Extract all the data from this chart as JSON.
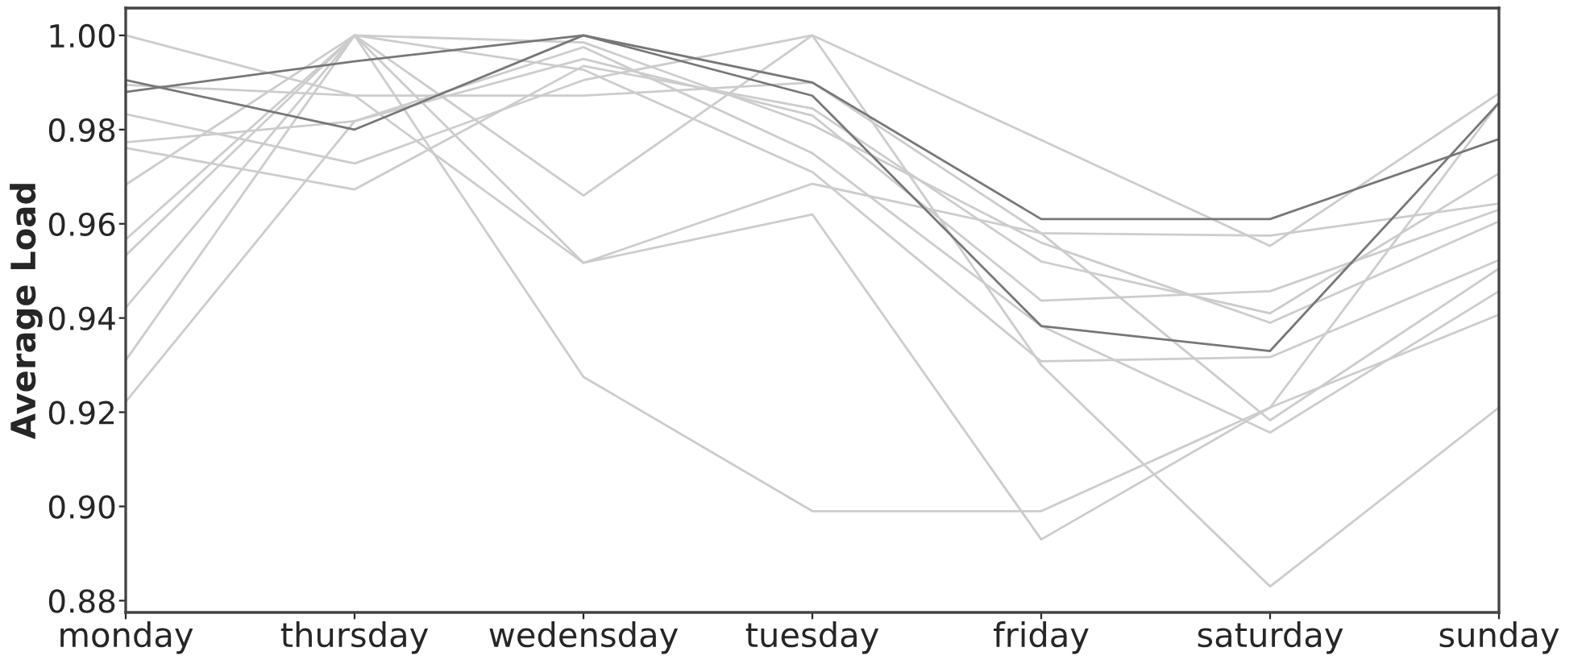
{
  "chart_data": {
    "type": "line",
    "ylabel": "Average Load",
    "categories": [
      "monday",
      "thursday",
      "wedensday",
      "tuesday",
      "friday",
      "saturday",
      "sunday"
    ],
    "ylim": [
      0.8775,
      1.0058
    ],
    "yticks": [
      {
        "value": 0.88,
        "label": "0.88"
      },
      {
        "value": 0.9,
        "label": "0.90"
      },
      {
        "value": 0.92,
        "label": "0.92"
      },
      {
        "value": 0.94,
        "label": "0.94"
      },
      {
        "value": 0.96,
        "label": "0.96"
      },
      {
        "value": 0.98,
        "label": "0.98"
      },
      {
        "value": 1.0,
        "label": "1.00"
      }
    ],
    "grid": false,
    "legend": false,
    "marker": "none",
    "line_style": "solid",
    "series": [
      {
        "color": "#cccccc",
        "values": [
          1.0,
          0.9872,
          0.9517,
          0.962,
          0.893,
          0.921,
          0.9857
        ]
      },
      {
        "color": "#cccccc",
        "values": [
          0.9895,
          0.9872,
          0.9872,
          0.99,
          0.958,
          0.9575,
          0.9643
        ]
      },
      {
        "color": "#cccccc",
        "values": [
          0.9833,
          0.9728,
          0.9905,
          1.0,
          0.9778,
          0.9553,
          0.9877
        ]
      },
      {
        "color": "#cccccc",
        "values": [
          0.9773,
          0.9818,
          0.995,
          0.983,
          0.9437,
          0.9457,
          0.963
        ]
      },
      {
        "color": "#cccccc",
        "values": [
          0.9761,
          0.9673,
          0.9935,
          0.9845,
          0.952,
          0.941,
          0.9707
        ]
      },
      {
        "color": "#cccccc",
        "values": [
          0.9683,
          1.0,
          0.966,
          1.0,
          0.93,
          0.883,
          0.921
        ]
      },
      {
        "color": "#cccccc",
        "values": [
          0.9567,
          1.0,
          0.9985,
          0.981,
          0.956,
          0.939,
          0.9605
        ]
      },
      {
        "color": "#cccccc",
        "values": [
          0.9533,
          1.0,
          0.9927,
          0.971,
          0.9308,
          0.9317,
          0.9523
        ]
      },
      {
        "color": "#cccccc",
        "values": [
          0.9422,
          1.0,
          0.9517,
          0.9685,
          0.958,
          0.9183,
          0.9505
        ]
      },
      {
        "color": "#cccccc",
        "values": [
          0.931,
          1.0,
          0.9275,
          0.899,
          0.899,
          0.921,
          0.9407
        ]
      },
      {
        "color": "#cccccc",
        "values": [
          0.9222,
          0.9818,
          0.9975,
          0.975,
          0.9383,
          0.9157,
          0.9457
        ]
      },
      {
        "color": "#777777",
        "values": [
          0.988,
          0.9945,
          1.0,
          0.9872,
          0.9383,
          0.933,
          0.9857
        ]
      },
      {
        "color": "#777777",
        "values": [
          0.9905,
          0.98,
          1.0,
          0.99,
          0.961,
          0.961,
          0.978
        ]
      }
    ]
  }
}
